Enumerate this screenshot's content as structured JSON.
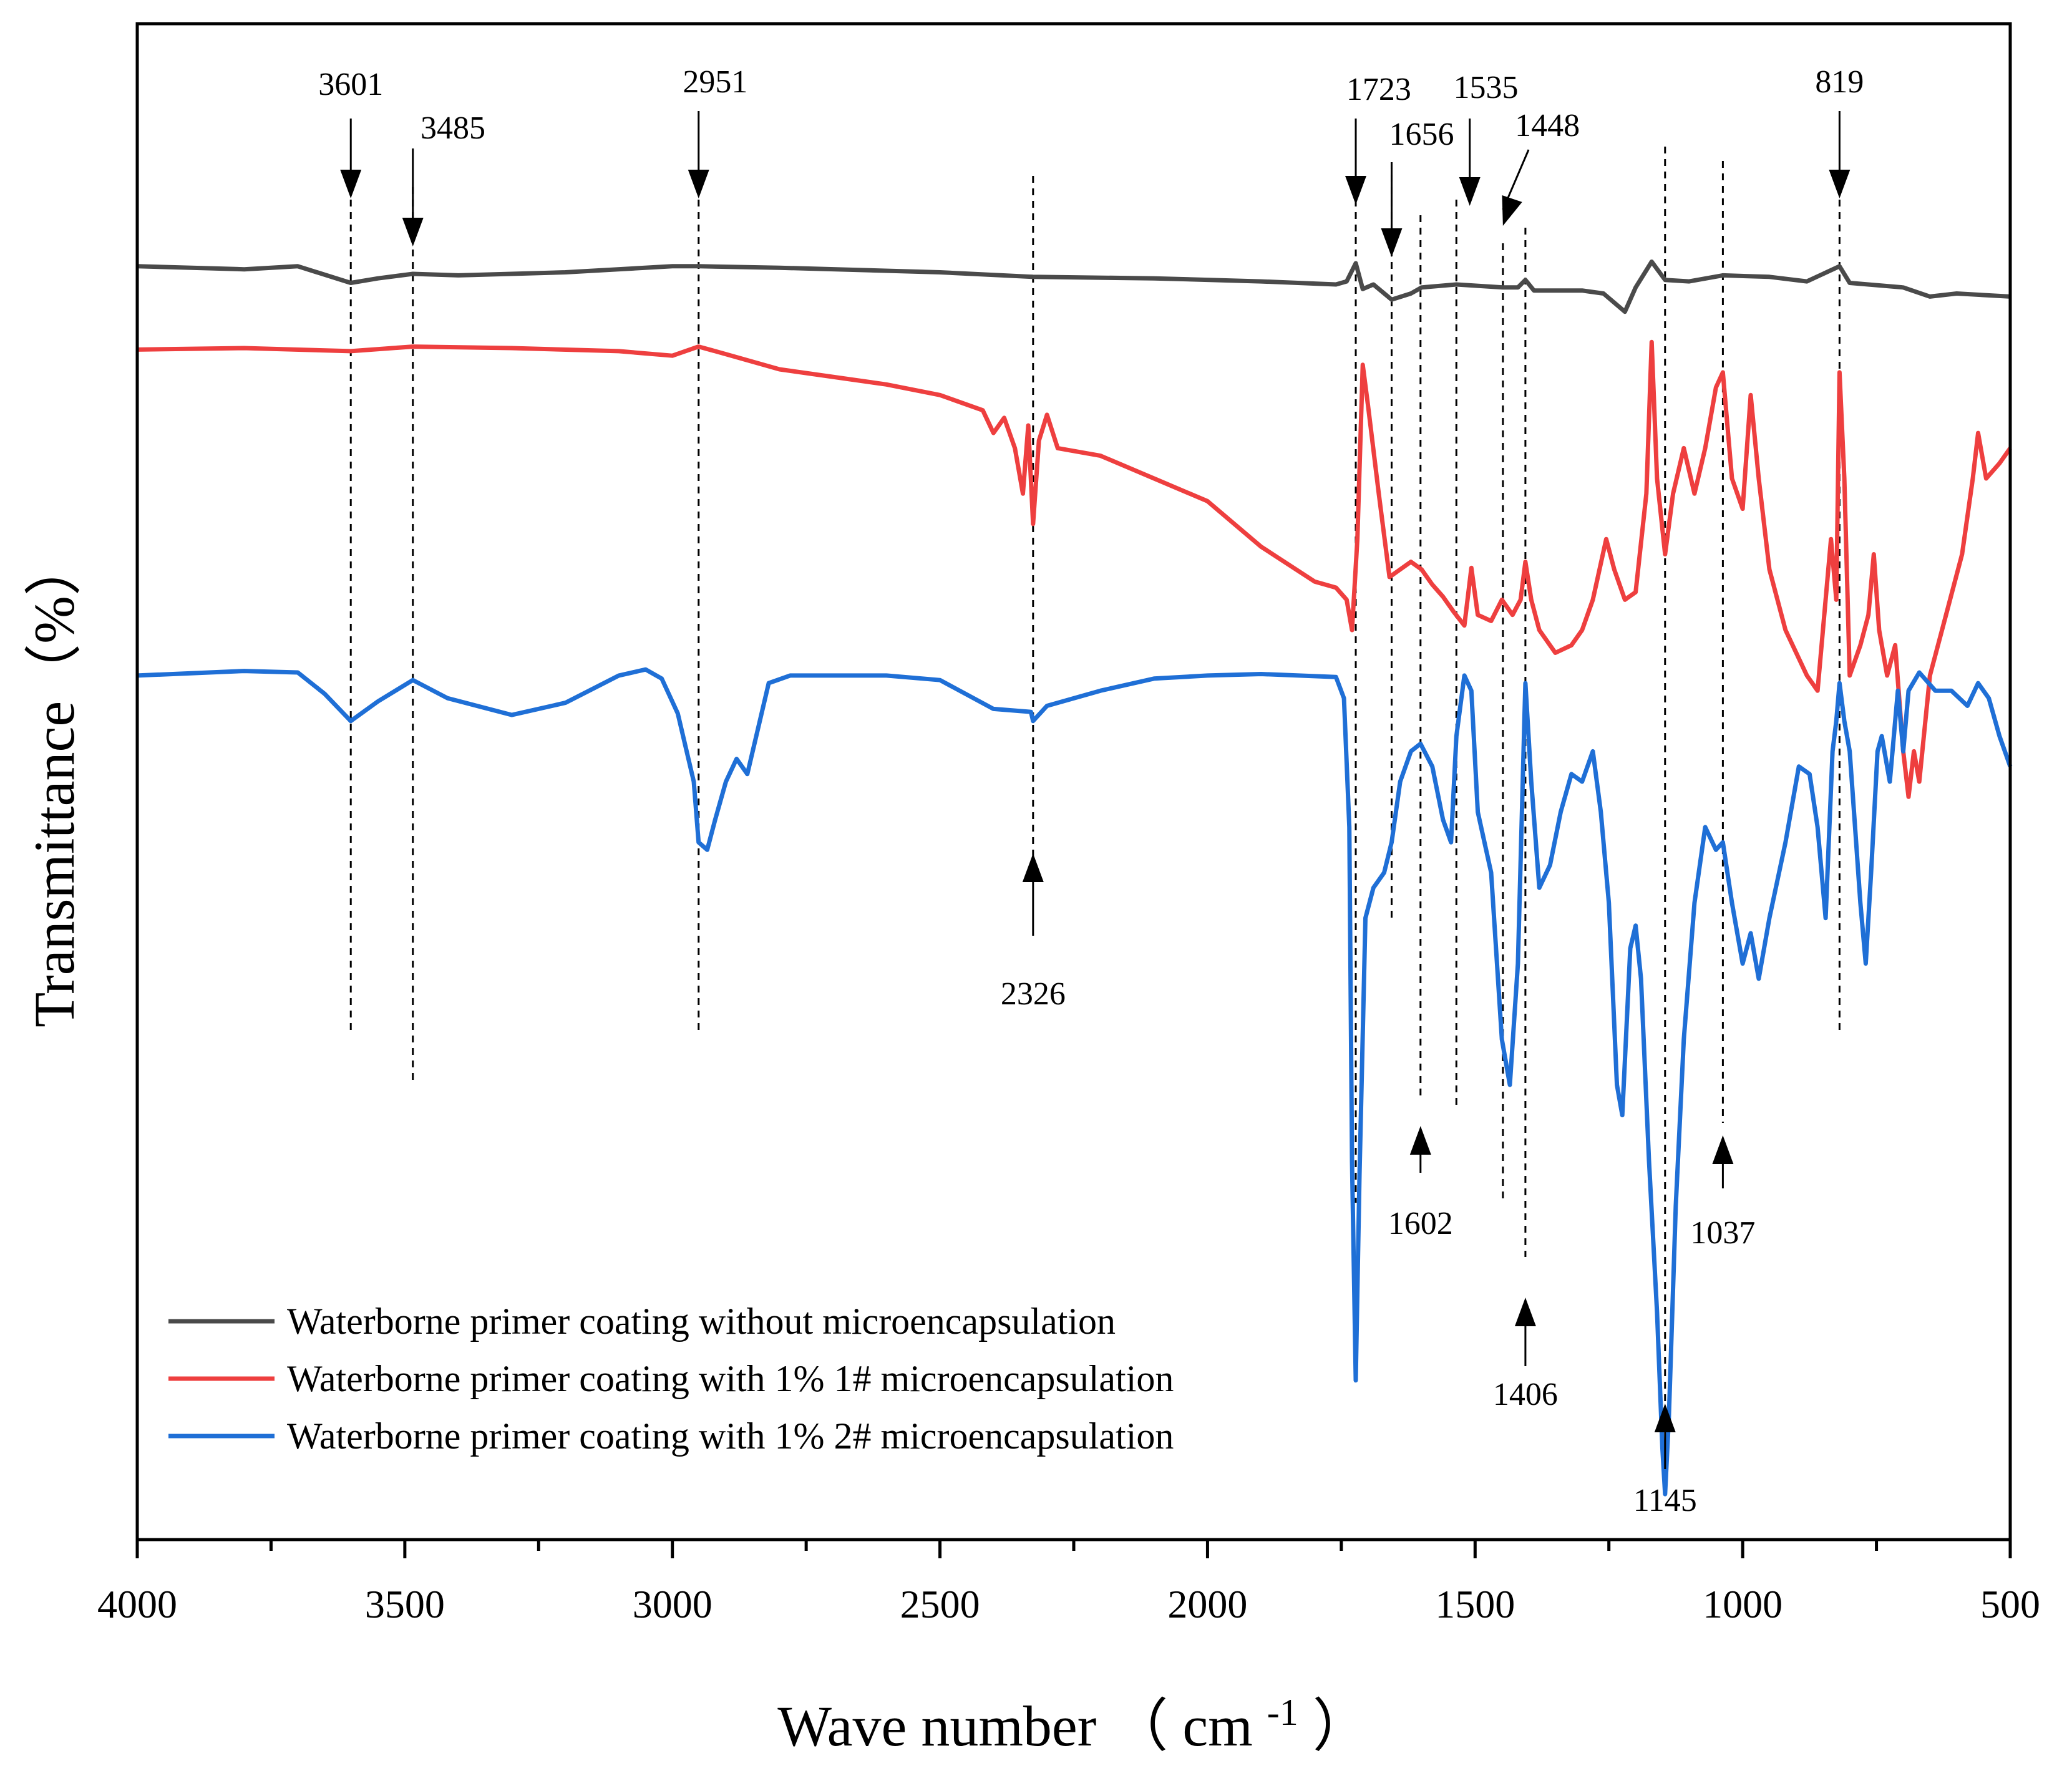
{
  "chart_data": {
    "type": "line",
    "title": "",
    "xlabel": "Wave number",
    "xlabel_unit_base": "cm",
    "xlabel_unit_exp": "-1",
    "ylabel": "Transmittance（%）",
    "xlim": [
      4000,
      500
    ],
    "x_ticks": [
      4000,
      3500,
      3000,
      2500,
      2000,
      1500,
      1000,
      500
    ],
    "y_ticks_visible": false,
    "grid": false,
    "legend_position": "bottom-left",
    "series": [
      {
        "name": "Waterborne primer coating without microencapsulation",
        "color": "#4a4a4a",
        "points": [
          [
            4000,
            0.84
          ],
          [
            3800,
            0.838
          ],
          [
            3700,
            0.84
          ],
          [
            3601,
            0.829
          ],
          [
            3550,
            0.832
          ],
          [
            3485,
            0.835
          ],
          [
            3400,
            0.834
          ],
          [
            3200,
            0.836
          ],
          [
            3000,
            0.84
          ],
          [
            2951,
            0.84
          ],
          [
            2800,
            0.839
          ],
          [
            2500,
            0.836
          ],
          [
            2326,
            0.833
          ],
          [
            2100,
            0.832
          ],
          [
            1900,
            0.83
          ],
          [
            1760,
            0.828
          ],
          [
            1740,
            0.83
          ],
          [
            1723,
            0.842
          ],
          [
            1710,
            0.825
          ],
          [
            1690,
            0.828
          ],
          [
            1656,
            0.818
          ],
          [
            1620,
            0.822
          ],
          [
            1600,
            0.826
          ],
          [
            1535,
            0.828
          ],
          [
            1448,
            0.826
          ],
          [
            1420,
            0.826
          ],
          [
            1406,
            0.831
          ],
          [
            1390,
            0.824
          ],
          [
            1300,
            0.824
          ],
          [
            1260,
            0.822
          ],
          [
            1220,
            0.81
          ],
          [
            1200,
            0.826
          ],
          [
            1170,
            0.843
          ],
          [
            1145,
            0.831
          ],
          [
            1100,
            0.83
          ],
          [
            1037,
            0.834
          ],
          [
            950,
            0.833
          ],
          [
            880,
            0.83
          ],
          [
            819,
            0.84
          ],
          [
            800,
            0.829
          ],
          [
            700,
            0.826
          ],
          [
            650,
            0.82
          ],
          [
            600,
            0.822
          ],
          [
            500,
            0.82
          ]
        ]
      },
      {
        "name": "Waterborne primer coating with 1% 1# microencapsulation",
        "color": "#ee3f3f",
        "points": [
          [
            4000,
            0.785
          ],
          [
            3800,
            0.786
          ],
          [
            3601,
            0.784
          ],
          [
            3485,
            0.787
          ],
          [
            3300,
            0.786
          ],
          [
            3100,
            0.784
          ],
          [
            3000,
            0.781
          ],
          [
            2951,
            0.787
          ],
          [
            2900,
            0.782
          ],
          [
            2800,
            0.772
          ],
          [
            2600,
            0.762
          ],
          [
            2500,
            0.755
          ],
          [
            2420,
            0.745
          ],
          [
            2400,
            0.73
          ],
          [
            2380,
            0.74
          ],
          [
            2360,
            0.72
          ],
          [
            2345,
            0.69
          ],
          [
            2335,
            0.735
          ],
          [
            2326,
            0.67
          ],
          [
            2315,
            0.725
          ],
          [
            2300,
            0.742
          ],
          [
            2280,
            0.72
          ],
          [
            2200,
            0.715
          ],
          [
            2100,
            0.7
          ],
          [
            2000,
            0.685
          ],
          [
            1900,
            0.655
          ],
          [
            1800,
            0.632
          ],
          [
            1760,
            0.628
          ],
          [
            1740,
            0.62
          ],
          [
            1730,
            0.6
          ],
          [
            1720,
            0.66
          ],
          [
            1710,
            0.775
          ],
          [
            1700,
            0.748
          ],
          [
            1680,
            0.69
          ],
          [
            1660,
            0.635
          ],
          [
            1640,
            0.64
          ],
          [
            1620,
            0.645
          ],
          [
            1600,
            0.64
          ],
          [
            1580,
            0.63
          ],
          [
            1560,
            0.622
          ],
          [
            1540,
            0.612
          ],
          [
            1520,
            0.603
          ],
          [
            1507,
            0.641
          ],
          [
            1495,
            0.61
          ],
          [
            1470,
            0.606
          ],
          [
            1450,
            0.62
          ],
          [
            1430,
            0.61
          ],
          [
            1415,
            0.62
          ],
          [
            1406,
            0.645
          ],
          [
            1395,
            0.62
          ],
          [
            1380,
            0.6
          ],
          [
            1350,
            0.585
          ],
          [
            1320,
            0.59
          ],
          [
            1300,
            0.6
          ],
          [
            1280,
            0.62
          ],
          [
            1255,
            0.66
          ],
          [
            1240,
            0.64
          ],
          [
            1220,
            0.62
          ],
          [
            1200,
            0.625
          ],
          [
            1180,
            0.69
          ],
          [
            1170,
            0.79
          ],
          [
            1160,
            0.7
          ],
          [
            1145,
            0.65
          ],
          [
            1130,
            0.69
          ],
          [
            1110,
            0.72
          ],
          [
            1090,
            0.69
          ],
          [
            1070,
            0.72
          ],
          [
            1050,
            0.76
          ],
          [
            1037,
            0.77
          ],
          [
            1020,
            0.7
          ],
          [
            1000,
            0.68
          ],
          [
            985,
            0.755
          ],
          [
            970,
            0.7
          ],
          [
            950,
            0.64
          ],
          [
            920,
            0.6
          ],
          [
            880,
            0.57
          ],
          [
            860,
            0.56
          ],
          [
            845,
            0.62
          ],
          [
            835,
            0.66
          ],
          [
            825,
            0.62
          ],
          [
            819,
            0.77
          ],
          [
            810,
            0.7
          ],
          [
            800,
            0.57
          ],
          [
            780,
            0.59
          ],
          [
            765,
            0.61
          ],
          [
            755,
            0.65
          ],
          [
            745,
            0.6
          ],
          [
            730,
            0.57
          ],
          [
            715,
            0.59
          ],
          [
            700,
            0.52
          ],
          [
            690,
            0.49
          ],
          [
            680,
            0.52
          ],
          [
            670,
            0.5
          ],
          [
            650,
            0.57
          ],
          [
            620,
            0.61
          ],
          [
            590,
            0.65
          ],
          [
            570,
            0.7
          ],
          [
            560,
            0.73
          ],
          [
            545,
            0.7
          ],
          [
            520,
            0.71
          ],
          [
            500,
            0.72
          ]
        ]
      },
      {
        "name": "Waterborne primer coating with 1% 2# microencapsulation",
        "color": "#1f6fd6",
        "points": [
          [
            4000,
            0.57
          ],
          [
            3800,
            0.573
          ],
          [
            3700,
            0.572
          ],
          [
            3650,
            0.558
          ],
          [
            3601,
            0.54
          ],
          [
            3550,
            0.553
          ],
          [
            3485,
            0.567
          ],
          [
            3420,
            0.555
          ],
          [
            3300,
            0.544
          ],
          [
            3200,
            0.552
          ],
          [
            3100,
            0.57
          ],
          [
            3050,
            0.574
          ],
          [
            3020,
            0.568
          ],
          [
            2990,
            0.545
          ],
          [
            2960,
            0.5
          ],
          [
            2951,
            0.46
          ],
          [
            2935,
            0.455
          ],
          [
            2920,
            0.475
          ],
          [
            2900,
            0.5
          ],
          [
            2880,
            0.515
          ],
          [
            2860,
            0.505
          ],
          [
            2820,
            0.565
          ],
          [
            2780,
            0.57
          ],
          [
            2600,
            0.57
          ],
          [
            2500,
            0.567
          ],
          [
            2400,
            0.548
          ],
          [
            2330,
            0.546
          ],
          [
            2326,
            0.54
          ],
          [
            2300,
            0.55
          ],
          [
            2200,
            0.56
          ],
          [
            2100,
            0.568
          ],
          [
            2000,
            0.57
          ],
          [
            1900,
            0.571
          ],
          [
            1760,
            0.569
          ],
          [
            1745,
            0.555
          ],
          [
            1735,
            0.47
          ],
          [
            1730,
            0.25
          ],
          [
            1723,
            0.105
          ],
          [
            1716,
            0.24
          ],
          [
            1705,
            0.41
          ],
          [
            1690,
            0.43
          ],
          [
            1670,
            0.44
          ],
          [
            1656,
            0.46
          ],
          [
            1640,
            0.5
          ],
          [
            1620,
            0.52
          ],
          [
            1602,
            0.525
          ],
          [
            1580,
            0.51
          ],
          [
            1560,
            0.475
          ],
          [
            1545,
            0.46
          ],
          [
            1535,
            0.53
          ],
          [
            1520,
            0.57
          ],
          [
            1507,
            0.56
          ],
          [
            1495,
            0.48
          ],
          [
            1470,
            0.44
          ],
          [
            1450,
            0.33
          ],
          [
            1435,
            0.3
          ],
          [
            1420,
            0.38
          ],
          [
            1408,
            0.54
          ],
          [
            1406,
            0.565
          ],
          [
            1395,
            0.5
          ],
          [
            1380,
            0.43
          ],
          [
            1360,
            0.445
          ],
          [
            1340,
            0.48
          ],
          [
            1320,
            0.505
          ],
          [
            1300,
            0.5
          ],
          [
            1280,
            0.52
          ],
          [
            1265,
            0.48
          ],
          [
            1250,
            0.42
          ],
          [
            1235,
            0.3
          ],
          [
            1225,
            0.28
          ],
          [
            1210,
            0.39
          ],
          [
            1200,
            0.405
          ],
          [
            1190,
            0.37
          ],
          [
            1175,
            0.25
          ],
          [
            1160,
            0.15
          ],
          [
            1150,
            0.06
          ],
          [
            1145,
            0.03
          ],
          [
            1138,
            0.08
          ],
          [
            1125,
            0.22
          ],
          [
            1110,
            0.33
          ],
          [
            1090,
            0.42
          ],
          [
            1070,
            0.47
          ],
          [
            1050,
            0.455
          ],
          [
            1037,
            0.46
          ],
          [
            1020,
            0.42
          ],
          [
            1000,
            0.38
          ],
          [
            985,
            0.4
          ],
          [
            970,
            0.37
          ],
          [
            950,
            0.41
          ],
          [
            920,
            0.46
          ],
          [
            895,
            0.51
          ],
          [
            875,
            0.505
          ],
          [
            860,
            0.47
          ],
          [
            845,
            0.41
          ],
          [
            832,
            0.52
          ],
          [
            825,
            0.54
          ],
          [
            819,
            0.565
          ],
          [
            810,
            0.54
          ],
          [
            800,
            0.52
          ],
          [
            790,
            0.47
          ],
          [
            780,
            0.42
          ],
          [
            770,
            0.38
          ],
          [
            760,
            0.44
          ],
          [
            748,
            0.52
          ],
          [
            740,
            0.53
          ],
          [
            725,
            0.5
          ],
          [
            710,
            0.56
          ],
          [
            700,
            0.52
          ],
          [
            690,
            0.56
          ],
          [
            670,
            0.572
          ],
          [
            640,
            0.56
          ],
          [
            610,
            0.56
          ],
          [
            580,
            0.55
          ],
          [
            560,
            0.565
          ],
          [
            540,
            0.555
          ],
          [
            520,
            0.53
          ],
          [
            500,
            0.51
          ]
        ]
      }
    ],
    "annotations": [
      {
        "label": "3601",
        "x": 3601,
        "arrow": "down",
        "curve": "black"
      },
      {
        "label": "3485",
        "x": 3485,
        "arrow": "down",
        "curve": "black"
      },
      {
        "label": "2951",
        "x": 2951,
        "arrow": "down",
        "curve": "black"
      },
      {
        "label": "1723",
        "x": 1723,
        "arrow": "down",
        "curve": "black"
      },
      {
        "label": "1656",
        "x": 1656,
        "arrow": "down",
        "curve": "black"
      },
      {
        "label": "1535",
        "x": 1535,
        "arrow": "down",
        "curve": "black"
      },
      {
        "label": "1448",
        "x": 1448,
        "arrow": "down",
        "curve": "black"
      },
      {
        "label": "819",
        "x": 819,
        "arrow": "down",
        "curve": "black"
      },
      {
        "label": "2326",
        "x": 2326,
        "arrow": "up",
        "curve": "blue"
      },
      {
        "label": "1602",
        "x": 1602,
        "arrow": "up",
        "curve": "blue"
      },
      {
        "label": "1406",
        "x": 1406,
        "arrow": "up",
        "curve": "blue"
      },
      {
        "label": "1145",
        "x": 1145,
        "arrow": "up",
        "curve": "blue"
      },
      {
        "label": "1037",
        "x": 1037,
        "arrow": "up",
        "curve": "blue"
      }
    ]
  }
}
